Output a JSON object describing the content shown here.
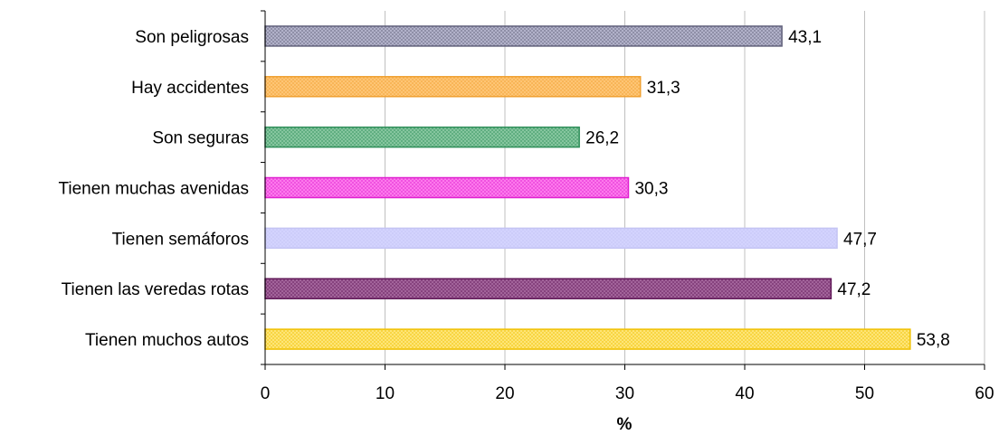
{
  "chart_data": {
    "type": "bar",
    "orientation": "horizontal",
    "categories": [
      "Son peligrosas",
      "Hay accidentes",
      "Son seguras",
      "Tienen muchas avenidas",
      "Tienen semáforos",
      "Tienen las veredas rotas",
      "Tienen muchos autos"
    ],
    "values": [
      43.1,
      31.3,
      26.2,
      30.3,
      47.7,
      47.2,
      53.8
    ],
    "value_labels": [
      "43,1",
      "31,3",
      "26,2",
      "30,3",
      "47,7",
      "47,2",
      "53,8"
    ],
    "bar_colors": [
      {
        "fill": "#b8b8d0",
        "stroke": "#60607a"
      },
      {
        "fill": "#ffc87a",
        "stroke": "#f0a030"
      },
      {
        "fill": "#8ccaa4",
        "stroke": "#2f8f5a"
      },
      {
        "fill": "#ff80ee",
        "stroke": "#e020d0"
      },
      {
        "fill": "#d4d4ff",
        "stroke": "#c4c4f4"
      },
      {
        "fill": "#a86aa0",
        "stroke": "#601858"
      },
      {
        "fill": "#ffe880",
        "stroke": "#f0c000"
      }
    ],
    "xlabel": "%",
    "ylabel": "",
    "xlim": [
      0,
      60
    ],
    "xticks": [
      0,
      10,
      20,
      30,
      40,
      50,
      60
    ],
    "xtick_labels": [
      "0",
      "10",
      "20",
      "30",
      "40",
      "50",
      "60"
    ],
    "grid": "vertical"
  }
}
